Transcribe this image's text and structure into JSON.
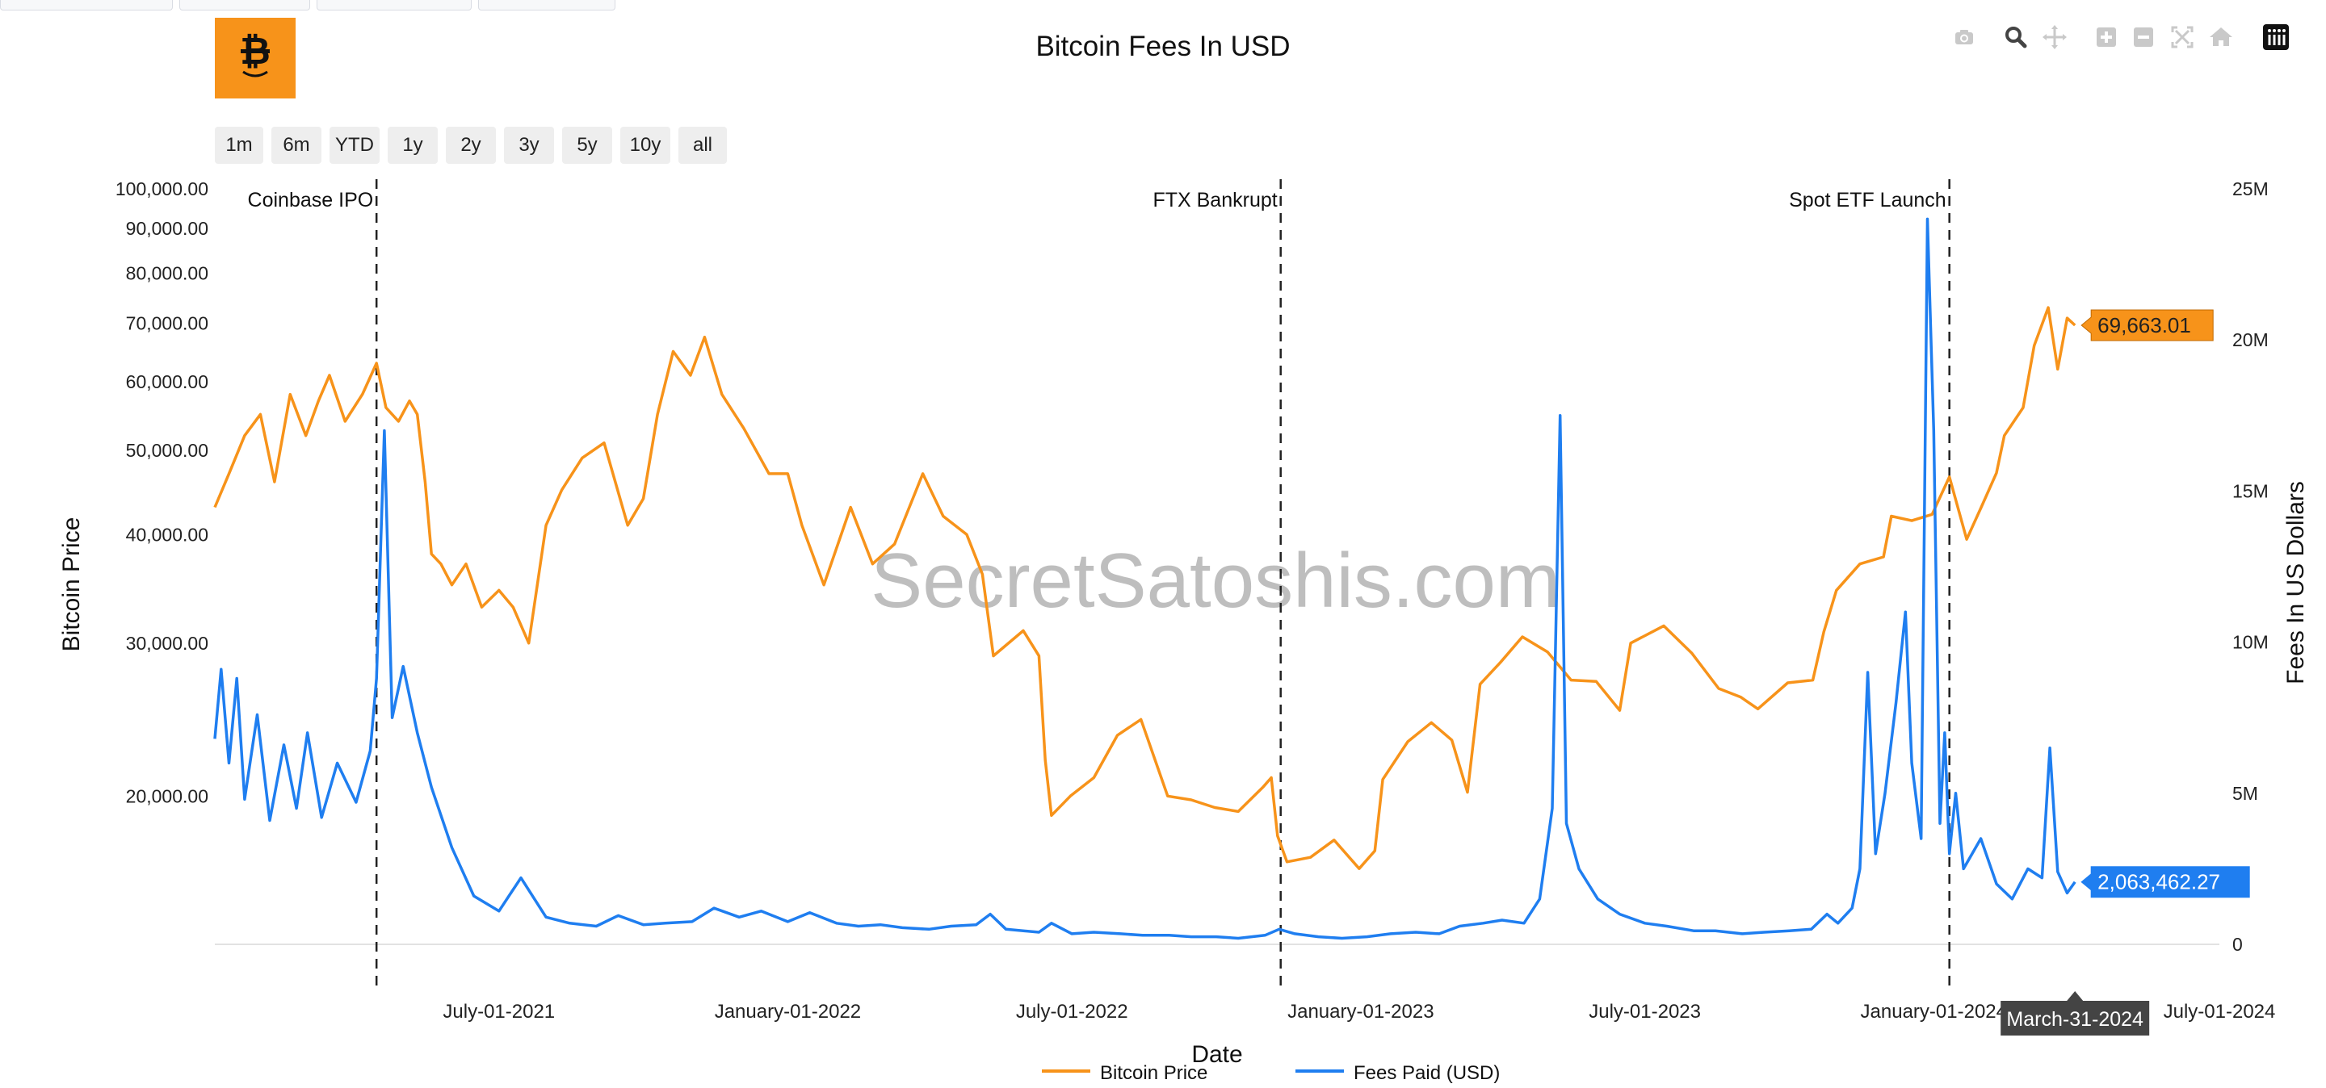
{
  "chart_data": {
    "type": "line",
    "title": "Bitcoin Fees In USD",
    "xlabel": "Date",
    "ylabel_left": "Bitcoin Price",
    "ylabel_right": "Fees In US Dollars",
    "left_axis": {
      "scale": "log",
      "ylim": [
        13500,
        100000
      ],
      "tick_values": [
        20000,
        30000,
        40000,
        50000,
        60000,
        70000,
        80000,
        90000,
        100000
      ],
      "tick_labels": [
        "20,000.00",
        "30,000.00",
        "40,000.00",
        "50,000.00",
        "60,000.00",
        "70,000.00",
        "80,000.00",
        "90,000.00",
        "100,000.00"
      ]
    },
    "right_axis": {
      "scale": "linear",
      "ylim": [
        0,
        25000000
      ],
      "tick_values": [
        0,
        5000000,
        10000000,
        15000000,
        20000000,
        25000000
      ],
      "tick_labels": [
        "0",
        "5M",
        "10M",
        "15M",
        "20M",
        "25M"
      ]
    },
    "x_range": [
      "2021-01-01",
      "2024-07-01"
    ],
    "x_ticks": [
      {
        "date": "2021-07-01",
        "label": "July-01-2021"
      },
      {
        "date": "2022-01-01",
        "label": "January-01-2022"
      },
      {
        "date": "2022-07-01",
        "label": "July-01-2022"
      },
      {
        "date": "2023-01-01",
        "label": "January-01-2023"
      },
      {
        "date": "2023-07-01",
        "label": "July-01-2023"
      },
      {
        "date": "2024-01-01",
        "label": "January-01-2024"
      },
      {
        "date": "2024-07-01",
        "label": "July-01-2024"
      }
    ],
    "hover_x": {
      "date": "2024-03-31",
      "label": "March-31-2024"
    },
    "events": [
      {
        "date": "2021-04-14",
        "label": "Coinbase IPO"
      },
      {
        "date": "2022-11-11",
        "label": "FTX Bankrupt"
      },
      {
        "date": "2024-01-11",
        "label": "Spot ETF Launch"
      }
    ],
    "watermark": "SecretSatoshis.com",
    "grid": false,
    "legend_position": "bottom-center",
    "series": [
      {
        "name": "Bitcoin Price",
        "axis": "left",
        "color": "#f7931a",
        "last_value_label": "69,663.01",
        "points": [
          [
            "2021-01-01",
            43000
          ],
          [
            "2021-01-10",
            47000
          ],
          [
            "2021-01-20",
            52000
          ],
          [
            "2021-01-30",
            55000
          ],
          [
            "2021-02-08",
            46000
          ],
          [
            "2021-02-18",
            58000
          ],
          [
            "2021-02-28",
            52000
          ],
          [
            "2021-03-08",
            57000
          ],
          [
            "2021-03-15",
            61000
          ],
          [
            "2021-03-25",
            54000
          ],
          [
            "2021-04-05",
            58000
          ],
          [
            "2021-04-14",
            63000
          ],
          [
            "2021-04-20",
            56000
          ],
          [
            "2021-04-28",
            54000
          ],
          [
            "2021-05-05",
            57000
          ],
          [
            "2021-05-10",
            55000
          ],
          [
            "2021-05-15",
            46000
          ],
          [
            "2021-05-19",
            38000
          ],
          [
            "2021-05-25",
            37000
          ],
          [
            "2021-06-01",
            35000
          ],
          [
            "2021-06-10",
            37000
          ],
          [
            "2021-06-20",
            33000
          ],
          [
            "2021-07-01",
            34500
          ],
          [
            "2021-07-10",
            33000
          ],
          [
            "2021-07-20",
            30000
          ],
          [
            "2021-07-31",
            41000
          ],
          [
            "2021-08-10",
            45000
          ],
          [
            "2021-08-23",
            49000
          ],
          [
            "2021-09-06",
            51000
          ],
          [
            "2021-09-21",
            41000
          ],
          [
            "2021-10-01",
            44000
          ],
          [
            "2021-10-10",
            55000
          ],
          [
            "2021-10-20",
            65000
          ],
          [
            "2021-10-31",
            61000
          ],
          [
            "2021-11-09",
            67500
          ],
          [
            "2021-11-20",
            58000
          ],
          [
            "2021-12-04",
            53000
          ],
          [
            "2021-12-20",
            47000
          ],
          [
            "2022-01-01",
            47000
          ],
          [
            "2022-01-10",
            41000
          ],
          [
            "2022-01-24",
            35000
          ],
          [
            "2022-02-10",
            43000
          ],
          [
            "2022-02-24",
            37000
          ],
          [
            "2022-03-10",
            39000
          ],
          [
            "2022-03-28",
            47000
          ],
          [
            "2022-04-10",
            42000
          ],
          [
            "2022-04-25",
            40000
          ],
          [
            "2022-05-05",
            36000
          ],
          [
            "2022-05-12",
            29000
          ],
          [
            "2022-05-31",
            31000
          ],
          [
            "2022-06-10",
            29000
          ],
          [
            "2022-06-14",
            22000
          ],
          [
            "2022-06-18",
            19000
          ],
          [
            "2022-06-30",
            20000
          ],
          [
            "2022-07-15",
            21000
          ],
          [
            "2022-07-30",
            23500
          ],
          [
            "2022-08-14",
            24500
          ],
          [
            "2022-08-31",
            20000
          ],
          [
            "2022-09-15",
            19800
          ],
          [
            "2022-09-30",
            19400
          ],
          [
            "2022-10-15",
            19200
          ],
          [
            "2022-10-31",
            20500
          ],
          [
            "2022-11-05",
            21000
          ],
          [
            "2022-11-09",
            18000
          ],
          [
            "2022-11-15",
            16800
          ],
          [
            "2022-11-30",
            17000
          ],
          [
            "2022-12-15",
            17800
          ],
          [
            "2022-12-31",
            16500
          ],
          [
            "2023-01-10",
            17300
          ],
          [
            "2023-01-15",
            20900
          ],
          [
            "2023-01-31",
            23100
          ],
          [
            "2023-02-15",
            24300
          ],
          [
            "2023-02-28",
            23200
          ],
          [
            "2023-03-10",
            20200
          ],
          [
            "2023-03-18",
            26900
          ],
          [
            "2023-03-31",
            28500
          ],
          [
            "2023-04-14",
            30500
          ],
          [
            "2023-04-30",
            29300
          ],
          [
            "2023-05-15",
            27200
          ],
          [
            "2023-05-31",
            27100
          ],
          [
            "2023-06-15",
            25100
          ],
          [
            "2023-06-22",
            30000
          ],
          [
            "2023-07-13",
            31400
          ],
          [
            "2023-07-31",
            29200
          ],
          [
            "2023-08-17",
            26600
          ],
          [
            "2023-08-31",
            26000
          ],
          [
            "2023-09-11",
            25200
          ],
          [
            "2023-09-30",
            27000
          ],
          [
            "2023-10-16",
            27200
          ],
          [
            "2023-10-23",
            30900
          ],
          [
            "2023-10-31",
            34500
          ],
          [
            "2023-11-15",
            37000
          ],
          [
            "2023-11-30",
            37700
          ],
          [
            "2023-12-05",
            42000
          ],
          [
            "2023-12-18",
            41500
          ],
          [
            "2023-12-31",
            42200
          ],
          [
            "2024-01-11",
            46600
          ],
          [
            "2024-01-22",
            39500
          ],
          [
            "2024-01-31",
            42900
          ],
          [
            "2024-02-10",
            47100
          ],
          [
            "2024-02-15",
            52000
          ],
          [
            "2024-02-27",
            56000
          ],
          [
            "2024-03-05",
            66000
          ],
          [
            "2024-03-14",
            73000
          ],
          [
            "2024-03-20",
            62000
          ],
          [
            "2024-03-26",
            71000
          ],
          [
            "2024-03-31",
            69663
          ]
        ]
      },
      {
        "name": "Fees Paid (USD)",
        "axis": "right",
        "color": "#1f7ef0",
        "last_value_label": "2,063,462.27",
        "points": [
          [
            "2021-01-01",
            6800000
          ],
          [
            "2021-01-05",
            9100000
          ],
          [
            "2021-01-10",
            6000000
          ],
          [
            "2021-01-15",
            8800000
          ],
          [
            "2021-01-20",
            4800000
          ],
          [
            "2021-01-28",
            7600000
          ],
          [
            "2021-02-05",
            4100000
          ],
          [
            "2021-02-14",
            6600000
          ],
          [
            "2021-02-22",
            4500000
          ],
          [
            "2021-03-01",
            7000000
          ],
          [
            "2021-03-10",
            4200000
          ],
          [
            "2021-03-20",
            6000000
          ],
          [
            "2021-04-01",
            4700000
          ],
          [
            "2021-04-10",
            6400000
          ],
          [
            "2021-04-14",
            8800000
          ],
          [
            "2021-04-19",
            17000000
          ],
          [
            "2021-04-24",
            7500000
          ],
          [
            "2021-05-01",
            9200000
          ],
          [
            "2021-05-10",
            7000000
          ],
          [
            "2021-05-19",
            5200000
          ],
          [
            "2021-06-01",
            3200000
          ],
          [
            "2021-06-15",
            1600000
          ],
          [
            "2021-07-01",
            1100000
          ],
          [
            "2021-07-15",
            2200000
          ],
          [
            "2021-07-31",
            900000
          ],
          [
            "2021-08-15",
            700000
          ],
          [
            "2021-09-01",
            600000
          ],
          [
            "2021-09-15",
            950000
          ],
          [
            "2021-10-01",
            650000
          ],
          [
            "2021-10-15",
            700000
          ],
          [
            "2021-11-01",
            750000
          ],
          [
            "2021-11-15",
            1200000
          ],
          [
            "2021-12-01",
            900000
          ],
          [
            "2021-12-15",
            1100000
          ],
          [
            "2022-01-01",
            750000
          ],
          [
            "2022-01-15",
            1050000
          ],
          [
            "2022-02-01",
            700000
          ],
          [
            "2022-02-15",
            600000
          ],
          [
            "2022-03-01",
            650000
          ],
          [
            "2022-03-15",
            550000
          ],
          [
            "2022-04-01",
            500000
          ],
          [
            "2022-04-15",
            600000
          ],
          [
            "2022-05-01",
            650000
          ],
          [
            "2022-05-10",
            1000000
          ],
          [
            "2022-05-20",
            500000
          ],
          [
            "2022-06-10",
            400000
          ],
          [
            "2022-06-18",
            700000
          ],
          [
            "2022-07-01",
            350000
          ],
          [
            "2022-07-15",
            400000
          ],
          [
            "2022-08-01",
            350000
          ],
          [
            "2022-08-15",
            300000
          ],
          [
            "2022-09-01",
            300000
          ],
          [
            "2022-09-15",
            250000
          ],
          [
            "2022-10-01",
            250000
          ],
          [
            "2022-10-15",
            200000
          ],
          [
            "2022-11-01",
            300000
          ],
          [
            "2022-11-10",
            500000
          ],
          [
            "2022-11-20",
            350000
          ],
          [
            "2022-12-05",
            250000
          ],
          [
            "2022-12-20",
            200000
          ],
          [
            "2023-01-05",
            250000
          ],
          [
            "2023-01-20",
            350000
          ],
          [
            "2023-02-05",
            400000
          ],
          [
            "2023-02-20",
            350000
          ],
          [
            "2023-03-05",
            600000
          ],
          [
            "2023-03-20",
            700000
          ],
          [
            "2023-04-01",
            800000
          ],
          [
            "2023-04-15",
            700000
          ],
          [
            "2023-04-25",
            1500000
          ],
          [
            "2023-05-03",
            4500000
          ],
          [
            "2023-05-08",
            17500000
          ],
          [
            "2023-05-12",
            4000000
          ],
          [
            "2023-05-20",
            2500000
          ],
          [
            "2023-06-01",
            1500000
          ],
          [
            "2023-06-15",
            1000000
          ],
          [
            "2023-07-01",
            700000
          ],
          [
            "2023-07-15",
            600000
          ],
          [
            "2023-08-01",
            450000
          ],
          [
            "2023-08-15",
            450000
          ],
          [
            "2023-09-01",
            350000
          ],
          [
            "2023-09-15",
            400000
          ],
          [
            "2023-10-01",
            450000
          ],
          [
            "2023-10-15",
            500000
          ],
          [
            "2023-10-25",
            1000000
          ],
          [
            "2023-11-01",
            700000
          ],
          [
            "2023-11-10",
            1200000
          ],
          [
            "2023-11-15",
            2500000
          ],
          [
            "2023-11-20",
            9000000
          ],
          [
            "2023-11-25",
            3000000
          ],
          [
            "2023-12-01",
            5000000
          ],
          [
            "2023-12-08",
            8000000
          ],
          [
            "2023-12-14",
            11000000
          ],
          [
            "2023-12-18",
            6000000
          ],
          [
            "2023-12-24",
            3500000
          ],
          [
            "2023-12-28",
            24000000
          ],
          [
            "2024-01-01",
            17000000
          ],
          [
            "2024-01-05",
            4000000
          ],
          [
            "2024-01-08",
            7000000
          ],
          [
            "2024-01-11",
            3000000
          ],
          [
            "2024-01-15",
            5000000
          ],
          [
            "2024-01-20",
            2500000
          ],
          [
            "2024-01-31",
            3500000
          ],
          [
            "2024-02-10",
            2000000
          ],
          [
            "2024-02-20",
            1500000
          ],
          [
            "2024-03-01",
            2500000
          ],
          [
            "2024-03-10",
            2200000
          ],
          [
            "2024-03-15",
            6500000
          ],
          [
            "2024-03-20",
            2400000
          ],
          [
            "2024-03-26",
            1700000
          ],
          [
            "2024-03-31",
            2063462
          ]
        ]
      }
    ]
  },
  "range_selector": [
    "1m",
    "6m",
    "YTD",
    "1y",
    "2y",
    "3y",
    "5y",
    "10y",
    "all"
  ],
  "modebar": [
    "camera-icon",
    "zoom-icon",
    "pan-icon",
    "zoom-in-icon",
    "zoom-out-icon",
    "autoscale-icon",
    "reset-home-icon",
    "plotly-logo-icon"
  ],
  "colors": {
    "accent": "#f7931a",
    "fees": "#1f7ef0"
  }
}
